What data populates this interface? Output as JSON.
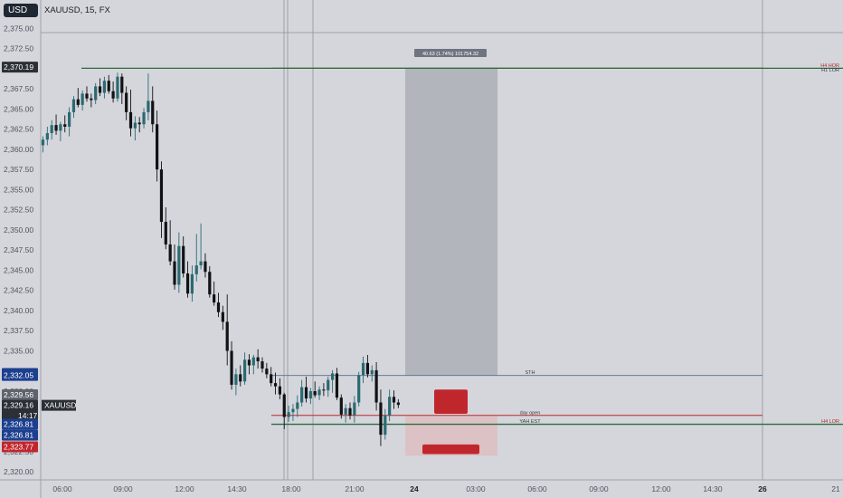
{
  "toolbar": {
    "currency_label": "USD",
    "symbol_title": "XAUUSD, 15, FX"
  },
  "colors": {
    "bg": "#d4d6dc",
    "up": "#2b6a72",
    "down": "#101214",
    "green_line": "#2e6b3a",
    "red_line": "#b82a2a",
    "blue_line": "#5a6f8c",
    "blue_badge": "#1c3f8f",
    "dark_badge": "#2b2f36",
    "red_badge": "#c0272d",
    "box": "#acafb6"
  },
  "chart_data": {
    "type": "candlestick",
    "symbol": "XAUUSD",
    "timeframe": "15",
    "ylim": [
      2319,
      2377.5
    ],
    "yticks": [
      "2,320.00",
      "2,322.50",
      "2,325.00",
      "2,327.50",
      "2,330.00",
      "2,332.50",
      "2,335.00",
      "2,337.50",
      "2,340.00",
      "2,342.50",
      "2,345.00",
      "2,347.50",
      "2,350.00",
      "2,352.50",
      "2,355.00",
      "2,357.50",
      "2,360.00",
      "2,362.50",
      "2,365.00",
      "2,367.50",
      "2,370.00",
      "2,372.50",
      "2,375.00"
    ],
    "xticks": [
      {
        "label": "06:00",
        "bold": false
      },
      {
        "label": "09:00",
        "bold": false
      },
      {
        "label": "12:00",
        "bold": false
      },
      {
        "label": "14:30",
        "bold": false
      },
      {
        "label": "18:00",
        "bold": false
      },
      {
        "label": "21:00",
        "bold": false
      },
      {
        "label": "24",
        "bold": true
      },
      {
        "label": "03:00",
        "bold": false
      },
      {
        "label": "06:00",
        "bold": false
      },
      {
        "label": "09:00",
        "bold": false
      },
      {
        "label": "12:00",
        "bold": false
      },
      {
        "label": "14:30",
        "bold": false
      },
      {
        "label": "26",
        "bold": true
      },
      {
        "label": "21",
        "bold": false
      }
    ],
    "candles": [
      [
        2360.5,
        2361.6,
        2359.6,
        2361.2
      ],
      [
        2361.2,
        2362.8,
        2360.5,
        2362.0
      ],
      [
        2362.0,
        2363.6,
        2361.2,
        2363.0
      ],
      [
        2363.0,
        2364.3,
        2361.8,
        2362.3
      ],
      [
        2362.3,
        2363.4,
        2361.0,
        2363.1
      ],
      [
        2363.1,
        2364.2,
        2362.1,
        2362.8
      ],
      [
        2362.8,
        2365.2,
        2361.6,
        2364.6
      ],
      [
        2364.6,
        2366.6,
        2363.9,
        2366.2
      ],
      [
        2366.2,
        2367.6,
        2365.2,
        2365.5
      ],
      [
        2365.5,
        2367.3,
        2364.8,
        2366.9
      ],
      [
        2366.9,
        2367.8,
        2365.9,
        2366.3
      ],
      [
        2366.3,
        2366.9,
        2365.2,
        2366.1
      ],
      [
        2366.1,
        2368.2,
        2365.6,
        2367.8
      ],
      [
        2367.8,
        2368.8,
        2366.6,
        2367.0
      ],
      [
        2367.0,
        2369.0,
        2366.3,
        2368.5
      ],
      [
        2368.5,
        2369.2,
        2366.9,
        2367.2
      ],
      [
        2367.2,
        2368.4,
        2365.8,
        2366.3
      ],
      [
        2366.3,
        2369.5,
        2365.9,
        2369.0
      ],
      [
        2369.0,
        2369.4,
        2365.6,
        2367.0
      ],
      [
        2367.0,
        2367.8,
        2363.6,
        2364.6
      ],
      [
        2364.6,
        2367.4,
        2361.6,
        2362.6
      ],
      [
        2362.6,
        2364.1,
        2361.1,
        2363.3
      ],
      [
        2363.3,
        2364.0,
        2362.1,
        2363.1
      ],
      [
        2363.1,
        2365.1,
        2362.6,
        2364.6
      ],
      [
        2364.6,
        2369.4,
        2363.6,
        2366.0
      ],
      [
        2366.0,
        2367.8,
        2362.1,
        2363.1
      ],
      [
        2363.1,
        2364.8,
        2356.0,
        2357.5
      ],
      [
        2357.5,
        2358.5,
        2349.0,
        2351.0
      ],
      [
        2351.0,
        2352.8,
        2347.6,
        2348.2
      ],
      [
        2348.2,
        2351.2,
        2345.6,
        2346.1
      ],
      [
        2346.1,
        2348.2,
        2342.6,
        2343.2
      ],
      [
        2343.2,
        2349.7,
        2342.2,
        2348.0
      ],
      [
        2348.0,
        2349.2,
        2344.1,
        2344.6
      ],
      [
        2344.6,
        2346.1,
        2341.6,
        2342.1
      ],
      [
        2342.1,
        2345.6,
        2341.1,
        2344.5
      ],
      [
        2344.5,
        2349.5,
        2343.6,
        2345.6
      ],
      [
        2345.6,
        2350.8,
        2345.1,
        2346.1
      ],
      [
        2346.1,
        2347.1,
        2344.1,
        2344.8
      ],
      [
        2344.8,
        2345.5,
        2341.6,
        2342.0
      ],
      [
        2342.0,
        2343.6,
        2340.6,
        2341.0
      ],
      [
        2341.0,
        2342.2,
        2339.2,
        2339.8
      ],
      [
        2339.8,
        2340.6,
        2337.6,
        2338.6
      ],
      [
        2338.6,
        2342.0,
        2333.2,
        2335.0
      ],
      [
        2335.0,
        2336.2,
        2330.2,
        2330.8
      ],
      [
        2330.8,
        2332.8,
        2329.5,
        2332.1
      ],
      [
        2332.1,
        2333.2,
        2330.6,
        2331.2
      ],
      [
        2331.2,
        2334.8,
        2330.8,
        2333.9
      ],
      [
        2333.9,
        2334.6,
        2332.1,
        2333.2
      ],
      [
        2333.2,
        2334.5,
        2332.1,
        2334.2
      ],
      [
        2334.2,
        2335.2,
        2332.8,
        2333.7
      ],
      [
        2333.7,
        2334.2,
        2332.3,
        2332.8
      ],
      [
        2332.8,
        2333.5,
        2331.6,
        2332.1
      ],
      [
        2332.1,
        2333.0,
        2330.6,
        2331.0
      ],
      [
        2331.0,
        2332.3,
        2329.6,
        2330.6
      ],
      [
        2330.6,
        2331.6,
        2329.0,
        2329.6
      ],
      [
        2329.6,
        2329.8,
        2325.3,
        2326.8
      ],
      [
        2326.8,
        2328.2,
        2326.2,
        2327.4
      ],
      [
        2327.4,
        2328.4,
        2326.3,
        2327.8
      ],
      [
        2327.8,
        2329.5,
        2326.8,
        2328.6
      ],
      [
        2328.6,
        2331.4,
        2328.1,
        2330.5
      ],
      [
        2330.5,
        2331.8,
        2328.6,
        2329.1
      ],
      [
        2329.1,
        2330.4,
        2328.4,
        2330.0
      ],
      [
        2330.0,
        2331.2,
        2329.2,
        2329.5
      ],
      [
        2329.5,
        2330.6,
        2328.9,
        2330.2
      ],
      [
        2330.2,
        2331.0,
        2329.4,
        2330.1
      ],
      [
        2330.1,
        2331.8,
        2329.3,
        2331.4
      ],
      [
        2331.4,
        2332.6,
        2329.8,
        2332.2
      ],
      [
        2332.2,
        2332.9,
        2328.9,
        2329.2
      ],
      [
        2329.2,
        2329.6,
        2326.6,
        2327.1
      ],
      [
        2327.1,
        2328.4,
        2326.1,
        2327.9
      ],
      [
        2327.9,
        2328.6,
        2326.5,
        2327.0
      ],
      [
        2327.0,
        2329.4,
        2326.1,
        2328.6
      ],
      [
        2328.6,
        2332.4,
        2328.1,
        2332.0
      ],
      [
        2332.0,
        2334.3,
        2331.0,
        2333.5
      ],
      [
        2333.5,
        2334.5,
        2331.7,
        2332.1
      ],
      [
        2332.1,
        2333.2,
        2331.2,
        2332.6
      ],
      [
        2332.6,
        2333.6,
        2327.6,
        2328.6
      ],
      [
        2328.6,
        2330.2,
        2323.2,
        2324.6
      ],
      [
        2324.6,
        2327.8,
        2324.0,
        2327.0
      ],
      [
        2327.0,
        2330.2,
        2326.3,
        2329.3
      ],
      [
        2329.3,
        2330.1,
        2327.8,
        2328.6
      ],
      [
        2328.6,
        2329.0,
        2327.9,
        2328.3
      ]
    ],
    "levels": [
      {
        "label": "H4 HOR",
        "price": 2370.05,
        "color": "green",
        "label_color": "red"
      },
      {
        "label": "H1 LOR",
        "price": 2370.05,
        "color": "green",
        "label_color": "dark"
      },
      {
        "label": "STH",
        "price": 2331.95,
        "color": "blue",
        "label_color": "dark"
      },
      {
        "label": "day open",
        "price": 2327.0,
        "color": "red",
        "label_color": "dark"
      },
      {
        "label": "H4 LOR",
        "price": 2325.9,
        "color": "green",
        "label_color": "red"
      },
      {
        "label": "YAH EST",
        "price": 2325.9,
        "color": "none",
        "label_color": "dark"
      }
    ],
    "measure_label": "40.63 (1.74%) 101754.32",
    "price_badges": [
      {
        "text": "2,370.19",
        "type": "dark",
        "price": 2370.19
      },
      {
        "text": "2,332.05",
        "type": "blue",
        "price": 2332.2
      },
      {
        "text": "2,332.05",
        "type": "blue",
        "price": 2331.95
      },
      {
        "text": "2,329.56",
        "type": "grey",
        "price": 2329.56
      },
      {
        "text": "2,329.16",
        "type": "dark",
        "price": 2328.25
      },
      {
        "text": "14:17",
        "type": "dark",
        "price": 2327.0
      },
      {
        "text": "XAUUSD",
        "type": "dark",
        "price": 2328.25
      },
      {
        "text": "2,326.81",
        "type": "blue",
        "price": 2325.9
      },
      {
        "text": "2,326.81",
        "type": "blue",
        "price": 2324.55
      },
      {
        "text": "2,323.77",
        "type": "red",
        "price": 2323.1
      }
    ]
  }
}
